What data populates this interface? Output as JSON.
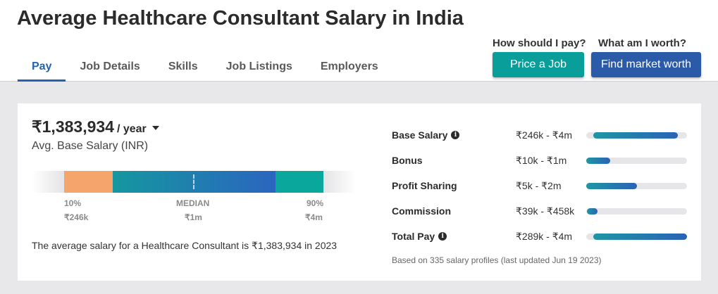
{
  "header": {
    "title": "Average Healthcare Consultant Salary in India",
    "tabs": [
      {
        "label": "Pay",
        "active": true
      },
      {
        "label": "Job Details",
        "active": false
      },
      {
        "label": "Skills",
        "active": false
      },
      {
        "label": "Job Listings",
        "active": false
      },
      {
        "label": "Employers",
        "active": false
      }
    ],
    "cta": {
      "pay_question": "How should I pay?",
      "worth_question": "What am I worth?",
      "price_job_button": "Price a Job",
      "market_worth_button": "Find market worth"
    }
  },
  "summary": {
    "amount": "₹1,383,934",
    "period": "/ year",
    "caption": "Avg. Base Salary (INR)",
    "sentence": "The average salary for a Healthcare Consultant is ₹1,383,934 in 2023"
  },
  "distribution": {
    "p10_label": "10%",
    "p10_value": "₹246k",
    "median_label": "MEDIAN",
    "median_value": "₹1m",
    "p90_label": "90%",
    "p90_value": "₹4m"
  },
  "breakdown": {
    "rows": [
      {
        "label": "Base Salary",
        "info": true,
        "range": "₹246k - ₹4m",
        "fill_start": 0.07,
        "fill_end": 0.91
      },
      {
        "label": "Bonus",
        "info": false,
        "range": "₹10k - ₹1m",
        "fill_start": 0.0,
        "fill_end": 0.24
      },
      {
        "label": "Profit Sharing",
        "info": false,
        "range": "₹5k - ₹2m",
        "fill_start": 0.0,
        "fill_end": 0.5
      },
      {
        "label": "Commission",
        "info": false,
        "range": "₹39k - ₹458k",
        "fill_start": 0.01,
        "fill_end": 0.11
      },
      {
        "label": "Total Pay",
        "info": true,
        "range": "₹289k - ₹4m",
        "fill_start": 0.07,
        "fill_end": 1.0
      }
    ],
    "footnote": "Based on 335 salary profiles (last updated Jun 19 2023)"
  },
  "colors": {
    "accent_blue": "#2563b0",
    "teal_button": "#0a9e9a",
    "blue_button": "#2a5aa8",
    "p10_segment": "#f5a56c",
    "p90_segment": "#0aa89c"
  },
  "icons": {
    "caret": "caret-down-icon",
    "info": "info-icon"
  }
}
